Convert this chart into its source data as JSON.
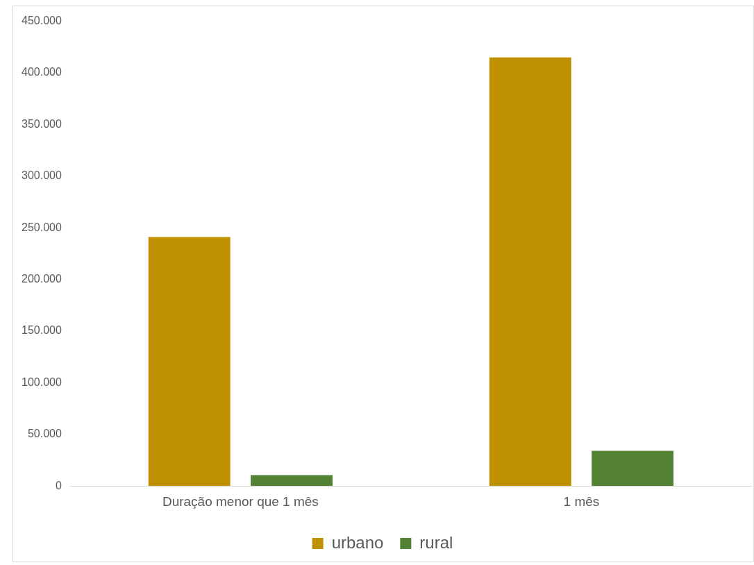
{
  "chart_data": {
    "type": "bar",
    "categories": [
      "Duração menor que 1 mês",
      "1 mês"
    ],
    "series": [
      {
        "name": "urbano",
        "color": "#bf9000",
        "values": [
          241000,
          415000
        ]
      },
      {
        "name": "rural",
        "color": "#548235",
        "values": [
          10500,
          34000
        ]
      }
    ],
    "ylim": [
      0,
      450000
    ],
    "yticks": [
      {
        "value": 0,
        "label": "0"
      },
      {
        "value": 50000,
        "label": "50.000"
      },
      {
        "value": 100000,
        "label": "100.000"
      },
      {
        "value": 150000,
        "label": "150.000"
      },
      {
        "value": 200000,
        "label": "200.000"
      },
      {
        "value": 250000,
        "label": "250.000"
      },
      {
        "value": 300000,
        "label": "300.000"
      },
      {
        "value": 350000,
        "label": "350.000"
      },
      {
        "value": 400000,
        "label": "400.000"
      },
      {
        "value": 450000,
        "label": "450.000"
      }
    ],
    "grid": false,
    "legend": "bottom"
  }
}
